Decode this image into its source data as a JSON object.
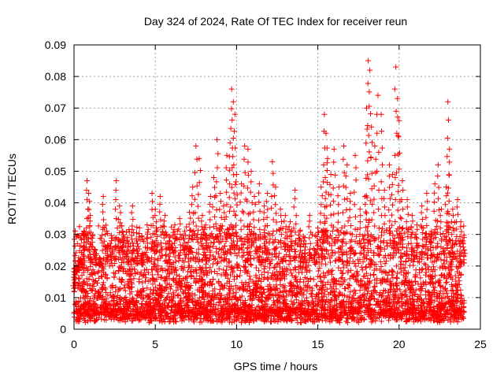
{
  "chart_data": {
    "type": "scatter",
    "title": "Day 324 of 2024, Rate Of TEC Index for receiver reun",
    "xlabel": "GPS time / hours",
    "ylabel": "ROTI / TECUs",
    "xlim": [
      0,
      25
    ],
    "ylim": [
      0,
      0.09
    ],
    "xticks": [
      0,
      5,
      10,
      15,
      20,
      25
    ],
    "xtick_labels": [
      "0",
      "5",
      "10",
      "15",
      "20",
      "25"
    ],
    "yticks": [
      0,
      0.01,
      0.02,
      0.03,
      0.04,
      0.05,
      0.06,
      0.07,
      0.08,
      0.09
    ],
    "ytick_labels": [
      "0",
      "0.01",
      "0.02",
      "0.03",
      "0.04",
      "0.05",
      "0.06",
      "0.07",
      "0.08",
      "0.09"
    ],
    "grid": true,
    "marker": "+",
    "point_color": "#ff0000",
    "series": [
      {
        "values": [
          [
            0.0,
            0.012
          ],
          [
            0.2,
            0.018
          ],
          [
            0.4,
            0.022
          ],
          [
            0.6,
            0.031
          ],
          [
            0.8,
            0.047
          ],
          [
            0.9,
            0.043
          ],
          [
            1.0,
            0.036
          ],
          [
            1.3,
            0.025
          ],
          [
            1.6,
            0.021
          ],
          [
            1.8,
            0.042
          ],
          [
            2.0,
            0.026
          ],
          [
            2.3,
            0.028
          ],
          [
            2.6,
            0.047
          ],
          [
            2.8,
            0.039
          ],
          [
            3.0,
            0.031
          ],
          [
            3.3,
            0.029
          ],
          [
            3.6,
            0.039
          ],
          [
            3.9,
            0.027
          ],
          [
            4.2,
            0.024
          ],
          [
            4.5,
            0.033
          ],
          [
            4.8,
            0.043
          ],
          [
            5.0,
            0.038
          ],
          [
            5.3,
            0.042
          ],
          [
            5.6,
            0.036
          ],
          [
            5.9,
            0.029
          ],
          [
            6.2,
            0.033
          ],
          [
            6.5,
            0.035
          ],
          [
            6.8,
            0.031
          ],
          [
            7.1,
            0.037
          ],
          [
            7.3,
            0.045
          ],
          [
            7.5,
            0.058
          ],
          [
            7.7,
            0.054
          ],
          [
            7.9,
            0.036
          ],
          [
            8.1,
            0.033
          ],
          [
            8.4,
            0.042
          ],
          [
            8.6,
            0.048
          ],
          [
            8.8,
            0.06
          ],
          [
            9.0,
            0.043
          ],
          [
            9.2,
            0.039
          ],
          [
            9.4,
            0.055
          ],
          [
            9.6,
            0.059
          ],
          [
            9.7,
            0.076
          ],
          [
            9.8,
            0.072
          ],
          [
            9.9,
            0.068
          ],
          [
            10.0,
            0.049
          ],
          [
            10.3,
            0.046
          ],
          [
            10.5,
            0.058
          ],
          [
            10.7,
            0.057
          ],
          [
            10.9,
            0.05
          ],
          [
            11.1,
            0.042
          ],
          [
            11.4,
            0.046
          ],
          [
            11.7,
            0.039
          ],
          [
            11.9,
            0.043
          ],
          [
            12.2,
            0.053
          ],
          [
            12.4,
            0.045
          ],
          [
            12.7,
            0.038
          ],
          [
            13.0,
            0.036
          ],
          [
            13.3,
            0.034
          ],
          [
            13.6,
            0.044
          ],
          [
            13.9,
            0.031
          ],
          [
            14.2,
            0.029
          ],
          [
            14.5,
            0.036
          ],
          [
            14.8,
            0.025
          ],
          [
            15.0,
            0.032
          ],
          [
            15.2,
            0.045
          ],
          [
            15.4,
            0.068
          ],
          [
            15.5,
            0.062
          ],
          [
            15.6,
            0.054
          ],
          [
            15.8,
            0.049
          ],
          [
            16.0,
            0.057
          ],
          [
            16.3,
            0.045
          ],
          [
            16.6,
            0.058
          ],
          [
            16.8,
            0.052
          ],
          [
            17.0,
            0.043
          ],
          [
            17.3,
            0.055
          ],
          [
            17.6,
            0.038
          ],
          [
            17.9,
            0.042
          ],
          [
            18.0,
            0.07
          ],
          [
            18.1,
            0.085
          ],
          [
            18.2,
            0.082
          ],
          [
            18.3,
            0.064
          ],
          [
            18.5,
            0.058
          ],
          [
            18.7,
            0.074
          ],
          [
            18.9,
            0.068
          ],
          [
            19.1,
            0.044
          ],
          [
            19.4,
            0.052
          ],
          [
            19.6,
            0.049
          ],
          [
            19.8,
            0.083
          ],
          [
            19.9,
            0.073
          ],
          [
            20.0,
            0.066
          ],
          [
            20.2,
            0.047
          ],
          [
            20.5,
            0.041
          ],
          [
            20.8,
            0.036
          ],
          [
            21.1,
            0.033
          ],
          [
            21.4,
            0.039
          ],
          [
            21.7,
            0.043
          ],
          [
            22.0,
            0.031
          ],
          [
            22.2,
            0.046
          ],
          [
            22.4,
            0.052
          ],
          [
            22.6,
            0.038
          ],
          [
            22.9,
            0.045
          ],
          [
            23.0,
            0.072
          ],
          [
            23.1,
            0.057
          ],
          [
            23.3,
            0.038
          ],
          [
            23.6,
            0.041
          ],
          [
            23.8,
            0.034
          ],
          [
            24.0,
            0.029
          ]
        ]
      }
    ],
    "dense_band": {
      "x_range": [
        0,
        24
      ],
      "y_min": 0.002,
      "y_max_typical": 0.03
    }
  }
}
